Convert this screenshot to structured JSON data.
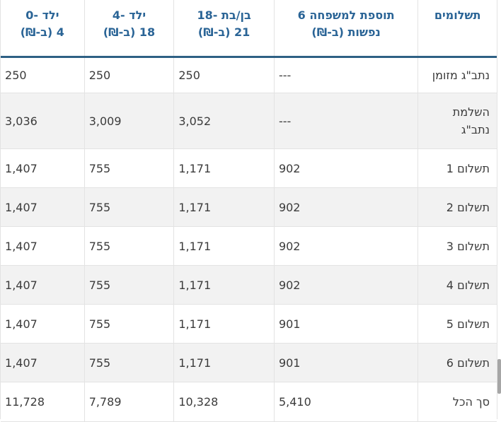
{
  "colors": {
    "header_text": "#2a6496",
    "header_border": "#2e6084",
    "zebra_row": "#f2f2f2",
    "cell_border": "#e3e3e3",
    "body_text": "#3b3b3b",
    "scrollbar_thumb": "#a6a6a6"
  },
  "header": {
    "payments": {
      "l1": "תשלומים"
    },
    "family6": {
      "l1": "תוספת למשפחה 6",
      "l2": "נפשות (ב-₪)"
    },
    "teen18_21": {
      "l1": "בן/בת -18",
      "l2": "21 (ב-₪)"
    },
    "child4_18": {
      "l1": "ילד -4",
      "l2": "18 (ב-₪)"
    },
    "child0_4": {
      "l1": "ילד -0",
      "l2": "4 (ב-₪)"
    }
  },
  "rows": [
    {
      "label": "נתב\"ג מזומן",
      "family6": "---",
      "teen18_21": "250",
      "child4_18": "250",
      "child0_4": "250"
    },
    {
      "label": "השלמת נתב\"ג",
      "family6": "---",
      "teen18_21": "3,052",
      "child4_18": "3,009",
      "child0_4": "3,036"
    },
    {
      "label": "תשלום 1",
      "family6": "902",
      "teen18_21": "1,171",
      "child4_18": "755",
      "child0_4": "1,407"
    },
    {
      "label": "תשלום 2",
      "family6": "902",
      "teen18_21": "1,171",
      "child4_18": "755",
      "child0_4": "1,407"
    },
    {
      "label": "תשלום 3",
      "family6": "902",
      "teen18_21": "1,171",
      "child4_18": "755",
      "child0_4": "1,407"
    },
    {
      "label": "תשלום 4",
      "family6": "902",
      "teen18_21": "1,171",
      "child4_18": "755",
      "child0_4": "1,407"
    },
    {
      "label": "תשלום 5",
      "family6": "901",
      "teen18_21": "1,171",
      "child4_18": "755",
      "child0_4": "1,407"
    },
    {
      "label": "תשלום 6",
      "family6": "901",
      "teen18_21": "1,171",
      "child4_18": "755",
      "child0_4": "1,407"
    },
    {
      "label": "סך הכל",
      "family6": "5,410",
      "teen18_21": "10,328",
      "child4_18": "7,789",
      "child0_4": "11,728"
    }
  ]
}
